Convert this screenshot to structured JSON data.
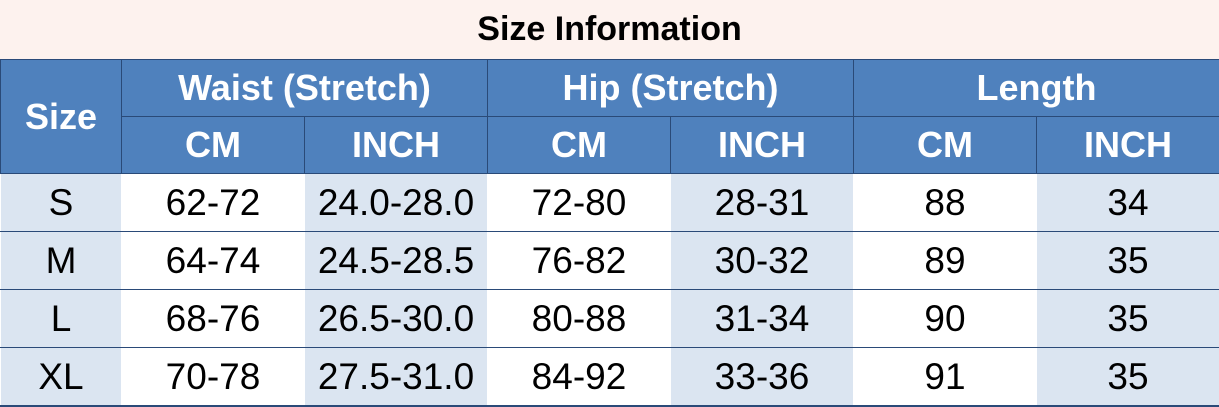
{
  "title": "Size Information",
  "header": {
    "size": "Size",
    "groups": [
      "Waist (Stretch)",
      "Hip (Stretch)",
      "Length"
    ],
    "units": [
      "CM",
      "INCH",
      "CM",
      "INCH",
      "CM",
      "INCH"
    ]
  },
  "rows": [
    {
      "size": "S",
      "cells": [
        "62-72",
        "24.0-28.0",
        "72-80",
        "28-31",
        "88",
        "34"
      ]
    },
    {
      "size": "M",
      "cells": [
        "64-74",
        "24.5-28.5",
        "76-82",
        "30-32",
        "89",
        "35"
      ]
    },
    {
      "size": "L",
      "cells": [
        "68-76",
        "26.5-30.0",
        "80-88",
        "31-34",
        "90",
        "35"
      ]
    },
    {
      "size": "XL",
      "cells": [
        "70-78",
        "27.5-31.0",
        "84-92",
        "33-36",
        "91",
        "35"
      ]
    }
  ],
  "colors": {
    "header_bg": "#4f81bd",
    "shade_bg": "#dbe5f1",
    "title_bg": "#fdf2ee"
  }
}
